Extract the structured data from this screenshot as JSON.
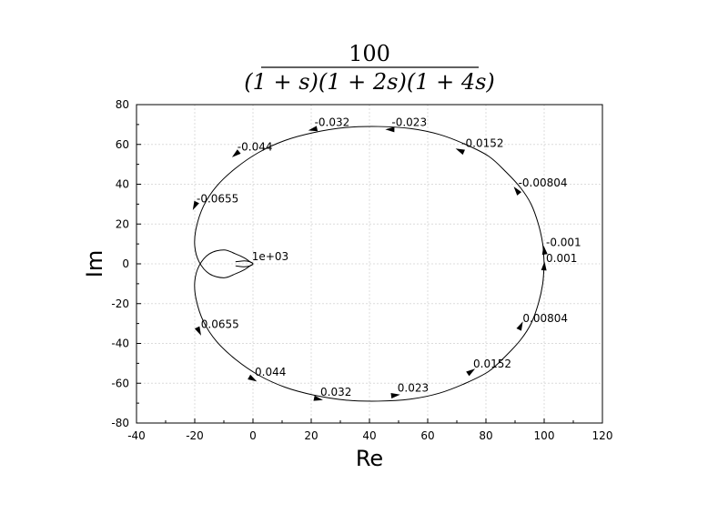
{
  "chart_data": {
    "type": "line",
    "title_numerator": "100",
    "title_denominator": "(1 + s)(1 + 2s)(1 + 4s)",
    "xlabel": "Re",
    "ylabel": "Im",
    "xlim": [
      -40,
      120
    ],
    "ylim": [
      -80,
      80
    ],
    "xticks": [
      "-40",
      "-20",
      "0",
      "20",
      "40",
      "60",
      "80",
      "100",
      "120"
    ],
    "yticks": [
      "80",
      "60",
      "40",
      "20",
      "0",
      "-20",
      "-40",
      "-60",
      "-80"
    ],
    "grid": true,
    "series": [
      {
        "x": [
          100,
          99.5,
          98,
          95.5,
          92,
          87,
          81,
          73,
          64,
          54,
          43,
          32,
          21,
          11,
          2,
          -6,
          -12.5,
          -17,
          -19.5,
          -20,
          -18.5,
          -15,
          -10,
          -6,
          -3,
          -1,
          0,
          -1,
          -3,
          -6
        ],
        "y": [
          0,
          10,
          20,
          30,
          38,
          46,
          54,
          60,
          65,
          68,
          69,
          68.5,
          66,
          62,
          56,
          48,
          39,
          29,
          18,
          9,
          1,
          -5,
          -7,
          -5,
          -3,
          -1,
          0,
          1,
          1.5,
          1
        ]
      }
    ],
    "annotations": [
      {
        "text": "-0.032",
        "x": 20.5,
        "y": 67.5
      },
      {
        "text": "-0.023",
        "x": 47,
        "y": 67.5
      },
      {
        "text": "-0.0152",
        "x": 71,
        "y": 57
      },
      {
        "text": "-0.00804",
        "x": 90.5,
        "y": 37
      },
      {
        "text": "-0.001",
        "x": 100,
        "y": 7
      },
      {
        "text": "-0.044",
        "x": -6,
        "y": 55
      },
      {
        "text": "-0.0655",
        "x": -20,
        "y": 29
      },
      {
        "text": "1e+03",
        "x": -1,
        "y": 0
      },
      {
        "text": "0.001",
        "x": 100,
        "y": -1
      },
      {
        "text": "0.00804",
        "x": 92,
        "y": -31
      },
      {
        "text": "0.0152",
        "x": 75,
        "y": -54
      },
      {
        "text": "0.023",
        "x": 49,
        "y": -66
      },
      {
        "text": "0.032",
        "x": 22.5,
        "y": -68
      },
      {
        "text": "0.044",
        "x": 0,
        "y": -58
      },
      {
        "text": "0.0655",
        "x": -18.5,
        "y": -34
      }
    ]
  }
}
